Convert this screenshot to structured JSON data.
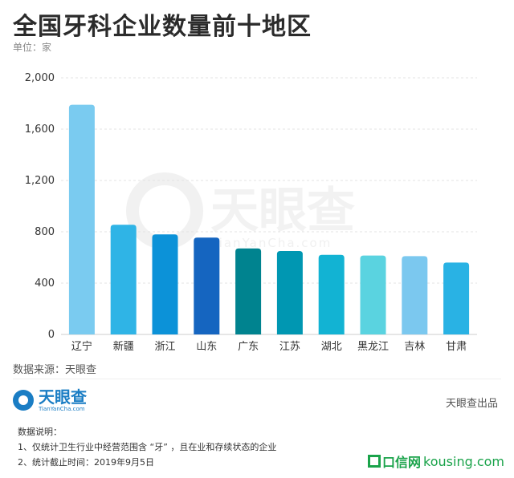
{
  "header": {
    "title": "全国牙科企业数量前十地区",
    "unit": "单位：家"
  },
  "chart_data": {
    "type": "bar",
    "categories": [
      "辽宁",
      "新疆",
      "浙江",
      "山东",
      "广东",
      "江苏",
      "湖北",
      "黑龙江",
      "吉林",
      "甘肃"
    ],
    "values": [
      1790,
      855,
      780,
      755,
      670,
      650,
      620,
      615,
      610,
      560
    ],
    "colors": [
      "#7acbf0",
      "#2fb4e6",
      "#0c92d8",
      "#1565c0",
      "#00838f",
      "#0097b2",
      "#12b3d3",
      "#5ad3e0",
      "#7bc8ef",
      "#29b2e4"
    ],
    "ylim": [
      0,
      2000
    ],
    "yticks": [
      0,
      400,
      800,
      1200,
      1600,
      2000
    ],
    "ytick_labels": [
      "0",
      "400",
      "800",
      "1,200",
      "1,600",
      "2,000"
    ],
    "grid": true
  },
  "watermark": {
    "cn": "天眼查",
    "en": "TianYanCha.com"
  },
  "footer": {
    "source": "数据来源：天眼查",
    "logo_cn": "天眼查",
    "logo_en": "TianYanCha.com",
    "produced_by": "天眼查出品",
    "note_title": "数据说明：",
    "note_1": "1、仅统计卫生行业中经营范围含 “牙” ，且在业和存续状态的企业",
    "note_2": "2、统计截止时间：2019年9月5日"
  },
  "site_watermark": {
    "cn": "口信网",
    "en": "kousing.com"
  }
}
